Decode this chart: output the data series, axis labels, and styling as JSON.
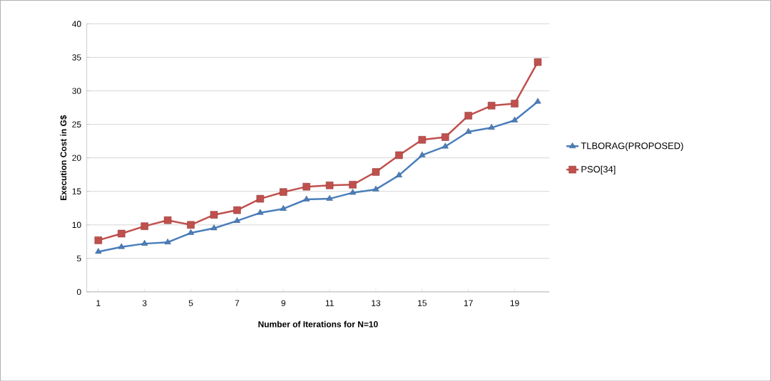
{
  "chart_data": {
    "type": "line",
    "xlabel": "Number of Iterations for N=10",
    "ylabel": "Execution Cost in G$",
    "categories": [
      "1",
      null,
      "3",
      null,
      "5",
      null,
      "7",
      null,
      "9",
      null,
      "11",
      null,
      "13",
      null,
      "15",
      null,
      "17",
      null,
      "19",
      null
    ],
    "series": [
      {
        "name": "TLBORAG(PROPOSED)",
        "color": "#4a7ebb",
        "marker": "triangle",
        "values": [
          6.0,
          6.7,
          7.2,
          7.4,
          8.8,
          9.5,
          10.6,
          11.8,
          12.4,
          13.8,
          13.9,
          14.8,
          15.3,
          17.4,
          20.4,
          21.7,
          23.9,
          24.5,
          25.6,
          28.4
        ]
      },
      {
        "name": "PSO[34]",
        "color": "#c0504d",
        "marker": "square",
        "values": [
          7.7,
          8.7,
          9.8,
          10.7,
          10.0,
          11.5,
          12.2,
          13.9,
          14.9,
          15.7,
          15.9,
          16.0,
          17.9,
          20.4,
          22.7,
          23.1,
          26.3,
          27.8,
          28.1,
          34.3
        ]
      }
    ],
    "ylim": [
      0,
      40
    ],
    "yticks": [
      0,
      5,
      10,
      15,
      20,
      25,
      30,
      35,
      40
    ],
    "grid": "y",
    "legend": "right",
    "line_style": "solid"
  }
}
